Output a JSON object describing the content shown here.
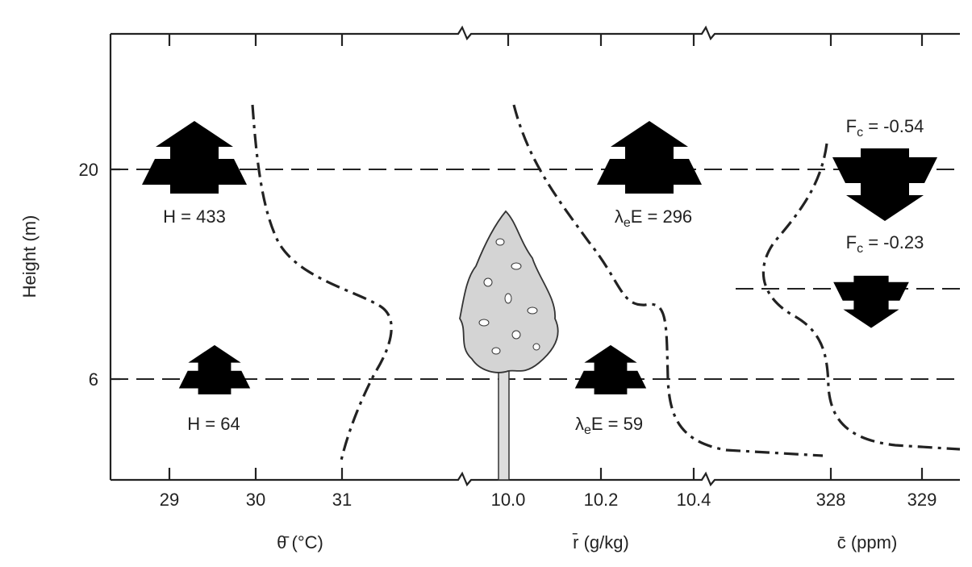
{
  "axes": {
    "y_label": "Height (m)",
    "y_ticks": [
      "20",
      "6"
    ],
    "panels": [
      {
        "label": "θ̄ (°C)",
        "ticks": [
          "29",
          "30",
          "31"
        ]
      },
      {
        "label": "r̄  (g/kg)",
        "ticks": [
          "10.0",
          "10.2",
          "10.4"
        ]
      },
      {
        "label": "c̄  (ppm)",
        "ticks": [
          "328",
          "329"
        ]
      }
    ]
  },
  "annotations": [
    {
      "symbol": "H",
      "text": " = 433"
    },
    {
      "symbol": "H",
      "text": " = 64"
    },
    {
      "symbol": "λ",
      "subscript": "e",
      "text": "E = 296"
    },
    {
      "symbol": "λ",
      "subscript": "e",
      "text": "E = 59"
    },
    {
      "symbol": "F",
      "subscript": "c",
      "text": " = -0.54"
    },
    {
      "symbol": "F",
      "subscript": "c",
      "text": " = -0.23"
    }
  ]
}
